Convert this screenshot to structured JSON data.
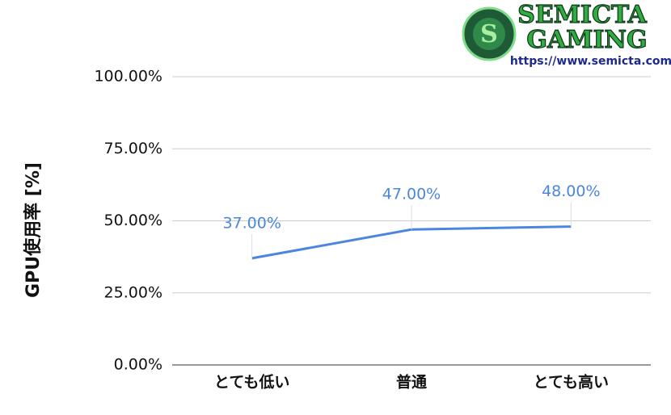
{
  "chart_data": {
    "type": "line",
    "y_label": "GPU使用率 [%]",
    "categories": [
      "とても低い",
      "普通",
      "とても高い"
    ],
    "series": [
      {
        "name": "GPU使用率",
        "color": "#4a86e0",
        "values": [
          37,
          47,
          48
        ],
        "value_labels": [
          "37.00%",
          "47.00%",
          "48.00%"
        ]
      }
    ],
    "ylim": [
      0,
      100
    ],
    "yticks": [
      {
        "value": 0,
        "label": "0.00%"
      },
      {
        "value": 25,
        "label": "25.00%"
      },
      {
        "value": 50,
        "label": "50.00%"
      },
      {
        "value": 75,
        "label": "75.00%"
      },
      {
        "value": 100,
        "label": "100.00%"
      }
    ],
    "grid": true
  },
  "logo": {
    "line1": "SEMICTA",
    "line2": "GAMING",
    "url": "https://www.semicta.com"
  }
}
